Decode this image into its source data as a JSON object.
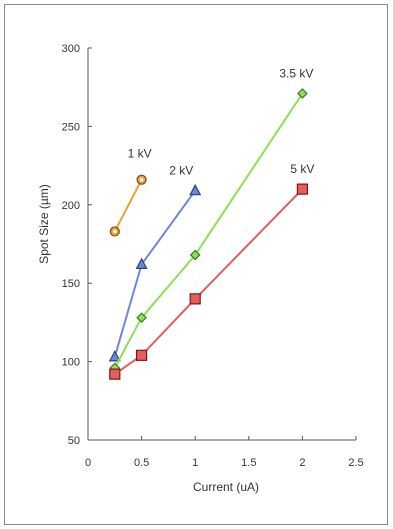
{
  "chart_data": {
    "type": "scatter",
    "title": "",
    "xlabel": "Current (uA)",
    "ylabel": "Spot Size (µm)",
    "xlim": [
      0,
      2.5
    ],
    "ylim": [
      50,
      300
    ],
    "x_ticks": [
      0,
      0.5,
      1,
      1.5,
      2,
      2.5
    ],
    "x_tick_labels": [
      "0",
      "0.5",
      "1",
      "1.5",
      "2",
      "2.5"
    ],
    "y_ticks": [
      50,
      100,
      150,
      200,
      250,
      300
    ],
    "y_tick_labels": [
      "50",
      "100",
      "150",
      "200",
      "250",
      "300"
    ],
    "grid": false,
    "legend": "labels next to series",
    "series": [
      {
        "name": "1 kV",
        "color": "#f0a030",
        "marker": "circle",
        "x": [
          0.25,
          0.5
        ],
        "y": [
          183,
          216
        ]
      },
      {
        "name": "2 kV",
        "color": "#6f86d6",
        "marker": "triangle",
        "x": [
          0.25,
          0.5,
          1.0
        ],
        "y": [
          103,
          162,
          209
        ]
      },
      {
        "name": "3.5 kV",
        "color": "#8ede5a",
        "marker": "diamond",
        "x": [
          0.25,
          0.5,
          1.0,
          2.0
        ],
        "y": [
          96,
          128,
          168,
          271
        ]
      },
      {
        "name": "5 kV",
        "color": "#e06060",
        "marker": "square",
        "x": [
          0.25,
          0.5,
          1.0,
          2.0
        ],
        "y": [
          92,
          104,
          140,
          210
        ]
      }
    ]
  }
}
